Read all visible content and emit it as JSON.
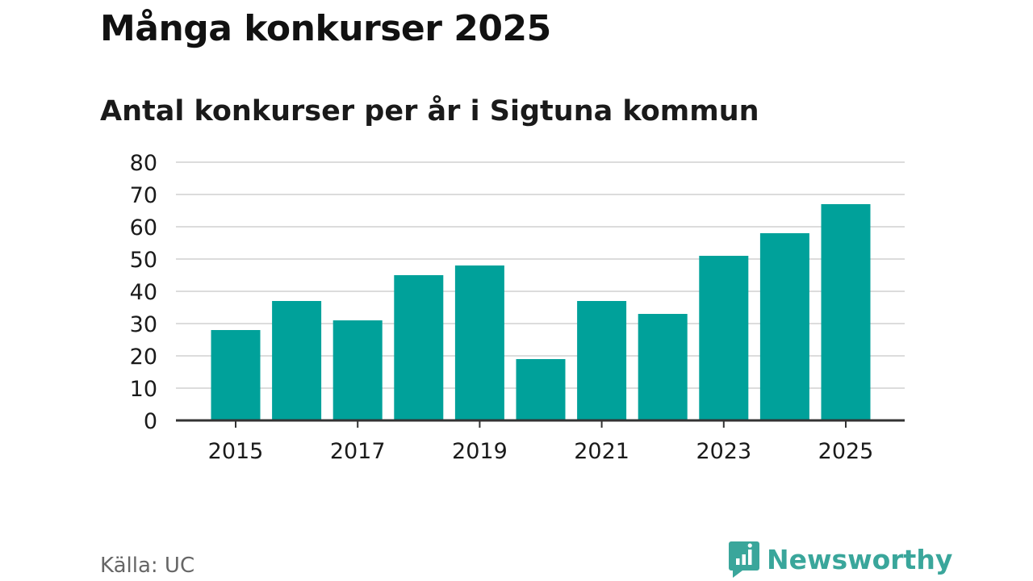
{
  "title": "Många konkurser 2025",
  "subtitle": "Antal konkurser per år i Sigtuna kommun",
  "source": "Källa: UC",
  "brand": {
    "name": "Newsworthy",
    "icon": "newsworthy-logo-icon",
    "color": "#3aa69b"
  },
  "colors": {
    "bar": "#00a19a",
    "grid": "#dcdcdc",
    "axis": "#333333",
    "tick_text": "#1a1a1a"
  },
  "chart_data": {
    "type": "bar",
    "title": "Många konkurser 2025",
    "subtitle": "Antal konkurser per år i Sigtuna kommun",
    "categories": [
      "2015",
      "2016",
      "2017",
      "2018",
      "2019",
      "2020",
      "2021",
      "2022",
      "2023",
      "2024",
      "2025"
    ],
    "values": [
      28,
      37,
      31,
      45,
      48,
      19,
      37,
      33,
      51,
      58,
      67
    ],
    "x_tick_labels": [
      "2015",
      "2017",
      "2019",
      "2021",
      "2023",
      "2025"
    ],
    "y_ticks": [
      0,
      10,
      20,
      30,
      40,
      50,
      60,
      70,
      80
    ],
    "xlabel": "",
    "ylabel": "",
    "ylim": [
      0,
      80
    ],
    "grid": true,
    "legend": "none"
  }
}
